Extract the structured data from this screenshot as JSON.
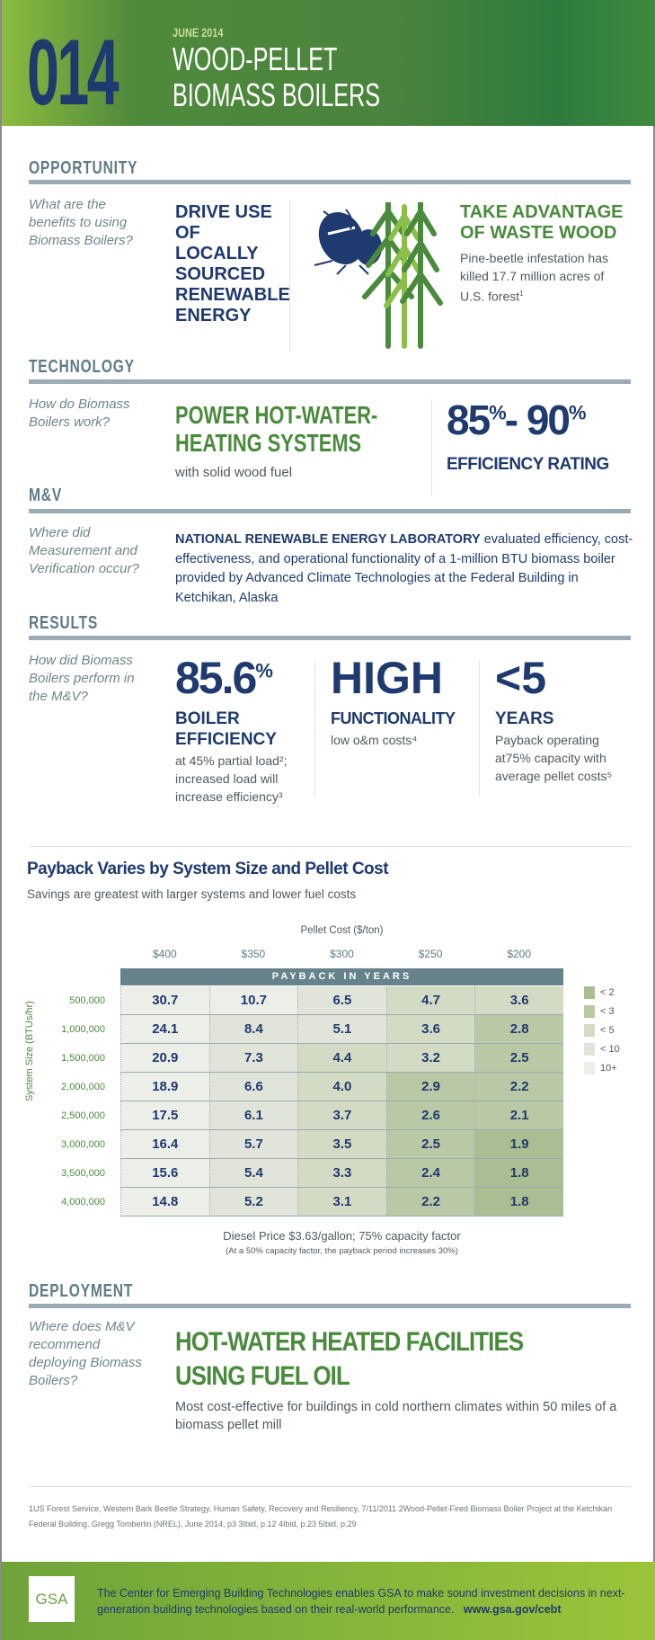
{
  "header": {
    "number": "014",
    "date": "JUNE 2014",
    "title_line1": "WOOD-PELLET",
    "title_line2": "BIOMASS BOILERS"
  },
  "opportunity": {
    "label": "OPPORTUNITY",
    "question": "What are the benefits to using Biomass Boilers?",
    "headline": "DRIVE USE OF LOCALLY SOURCED RENEWABLE ENERGY",
    "right_title": "TAKE ADVANTAGE OF WASTE WOOD",
    "right_text": "Pine-beetle infestation has killed 17.7 million acres of U.S. forest",
    "right_sup": "1",
    "icon": "beetle-trees-icon"
  },
  "technology": {
    "label": "TECHNOLOGY",
    "question": "How do Biomass Boilers work?",
    "headline": "POWER HOT-WATER-HEATING SYSTEMS",
    "sub": "with solid wood fuel",
    "stat_a": "85",
    "stat_b": "- 90",
    "pct": "%",
    "stat_label": "EFFICIENCY RATING"
  },
  "mv": {
    "label": "M&V",
    "question": "Where did Measurement and Verification occur?",
    "bold": "NATIONAL RENEWABLE ENERGY LABORATORY",
    "text": " evaluated efficiency, cost-effectiveness, and operational functionality of a 1-million BTU biomass boiler provided by Advanced Climate Technologies at the Federal Building in Ketchikan, Alaska"
  },
  "results": {
    "label": "RESULTS",
    "question": "How did Biomass Boilers perform in the M&V?",
    "items": [
      {
        "big": "85.6",
        "sup": "%",
        "title": "BOILER EFFICIENCY",
        "text": "at 45% partial load²; increased load will increase efficiency³"
      },
      {
        "big": "HIGH",
        "sup": "",
        "title": "FUNCTIONALITY",
        "text": "low o&m costs⁴"
      },
      {
        "big": "<5",
        "sup": "",
        "title": "YEARS",
        "text": "Payback operating at75% capacity with average pellet costs⁵"
      }
    ]
  },
  "chart_data": {
    "type": "table",
    "title": "Payback Varies by System Size and Pellet Cost",
    "subtitle": "Savings are greatest with larger systems and lower fuel costs",
    "xlabel": "Pellet Cost ($/ton)",
    "ylabel": "System Size (BTUs/hr)",
    "banner": "PAYBACK IN YEARS",
    "columns": [
      "$400",
      "$350",
      "$300",
      "$250",
      "$200"
    ],
    "rows": [
      "500,000",
      "1,000,000",
      "1,500,000",
      "2,000,000",
      "2,500,000",
      "3,000,000",
      "3,500,000",
      "4,000,000"
    ],
    "values": [
      [
        30.7,
        10.7,
        6.5,
        4.7,
        3.6
      ],
      [
        24.1,
        8.4,
        5.1,
        3.6,
        2.8
      ],
      [
        20.9,
        7.3,
        4.4,
        3.2,
        2.5
      ],
      [
        18.9,
        6.6,
        4.0,
        2.9,
        2.2
      ],
      [
        17.5,
        6.1,
        3.7,
        2.6,
        2.1
      ],
      [
        16.4,
        5.7,
        3.5,
        2.5,
        1.9
      ],
      [
        15.6,
        5.4,
        3.3,
        2.4,
        1.8
      ],
      [
        14.8,
        5.2,
        3.1,
        2.2,
        1.8
      ]
    ],
    "legend": [
      {
        "label": "< 2",
        "color": "#a9be92"
      },
      {
        "label": "< 3",
        "color": "#b9c9a5"
      },
      {
        "label": "< 5",
        "color": "#d3dbc5"
      },
      {
        "label": "< 10",
        "color": "#e1e5d9"
      },
      {
        "label": "10+",
        "color": "#eceee8"
      }
    ],
    "note": "Diesel Price $3.63/gallon; 75% capacity factor",
    "note2": "(At a 50% capacity factor, the payback period increases 30%)"
  },
  "deployment": {
    "label": "DEPLOYMENT",
    "question": "Where does M&V recommend deploying Biomass Boilers?",
    "headline_line1": "HOT-WATER HEATED FACILITIES",
    "headline_line2": "USING FUEL OIL",
    "sub": "Most cost-effective for buildings in cold northern climates within 50 miles of a biomass pellet mill"
  },
  "footnotes": "1US Forest Service, Western Bark Beetle Strategy, Human Safety, Recovery and Resiliency, 7/11/2011  2Wood-Pellet-Fired Biomass Boiler Project at the Ketchikan Federal Building. Gregg Tomberlin (NREL), June 2014, p3    3Ibid, p.12    4Ibid, p.23    5Ibid, p.29",
  "footer": {
    "logo": "GSA",
    "text": "The Center for Emerging Building Technologies enables GSA to make sound investment decisions in next-generation building technologies based on their real-world performance.",
    "url": "www.gsa.gov/cebt"
  },
  "colors": {
    "navy": "#1f3a6e",
    "green": "#4a8a3c",
    "slate": "#5e7b85"
  }
}
